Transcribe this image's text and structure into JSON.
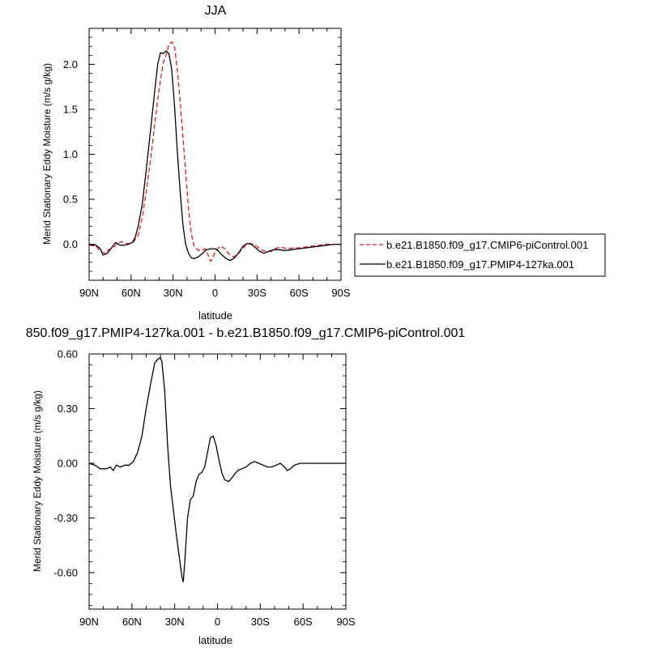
{
  "chart_data": [
    {
      "type": "line",
      "title": "JJA",
      "xlabel": "latitude",
      "ylabel": "Merid Stationary Eddy Moisture (m/s g/kg)",
      "xlim": [
        90,
        -90
      ],
      "ylim": [
        -0.4,
        2.4
      ],
      "x_ticks": [
        90,
        60,
        30,
        0,
        -30,
        -60,
        -90
      ],
      "x_tick_labels": [
        "90N",
        "60N",
        "30N",
        "0",
        "30S",
        "60S",
        "90S"
      ],
      "y_ticks": [
        0.0,
        0.5,
        1.0,
        1.5,
        2.0
      ],
      "y_tick_labels": [
        "0.0",
        "0.5",
        "1.0",
        "1.5",
        "2.0"
      ],
      "legend_position": "right",
      "series": [
        {
          "name": "b.e21.B1850.f09_g17.CMIP6-piControl.001",
          "color": "#e41a1c",
          "dash": "dashed",
          "points": [
            [
              90,
              -0.01
            ],
            [
              85,
              -0.02
            ],
            [
              82,
              -0.08
            ],
            [
              79,
              -0.1
            ],
            [
              76,
              -0.06
            ],
            [
              73,
              -0.04
            ],
            [
              70,
              0.0
            ],
            [
              67,
              0.03
            ],
            [
              64,
              0.01
            ],
            [
              61,
              0.01
            ],
            [
              58,
              0.03
            ],
            [
              55,
              0.1
            ],
            [
              52,
              0.3
            ],
            [
              49,
              0.6
            ],
            [
              46,
              0.95
            ],
            [
              43,
              1.35
            ],
            [
              40,
              1.72
            ],
            [
              37,
              2.02
            ],
            [
              35,
              2.1
            ],
            [
              33,
              2.22
            ],
            [
              31,
              2.25
            ],
            [
              29,
              2.2
            ],
            [
              27,
              1.95
            ],
            [
              25,
              1.6
            ],
            [
              23,
              1.2
            ],
            [
              21,
              0.8
            ],
            [
              19,
              0.4
            ],
            [
              17,
              0.12
            ],
            [
              15,
              -0.02
            ],
            [
              12,
              -0.07
            ],
            [
              10,
              -0.07
            ],
            [
              7,
              -0.05
            ],
            [
              5,
              -0.12
            ],
            [
              3,
              -0.19
            ],
            [
              1,
              -0.12
            ],
            [
              -1,
              -0.06
            ],
            [
              -4,
              -0.02
            ],
            [
              -7,
              -0.05
            ],
            [
              -10,
              -0.11
            ],
            [
              -13,
              -0.14
            ],
            [
              -16,
              -0.12
            ],
            [
              -19,
              -0.06
            ],
            [
              -22,
              -0.01
            ],
            [
              -25,
              0.01
            ],
            [
              -28,
              0.0
            ],
            [
              -31,
              -0.04
            ],
            [
              -34,
              -0.07
            ],
            [
              -37,
              -0.08
            ],
            [
              -40,
              -0.08
            ],
            [
              -43,
              -0.05
            ],
            [
              -46,
              -0.03
            ],
            [
              -49,
              -0.04
            ],
            [
              -52,
              -0.05
            ],
            [
              -56,
              -0.04
            ],
            [
              -60,
              -0.04
            ],
            [
              -65,
              -0.03
            ],
            [
              -70,
              -0.02
            ],
            [
              -75,
              -0.01
            ],
            [
              -80,
              0.0
            ],
            [
              -85,
              0.0
            ],
            [
              -90,
              0.0
            ]
          ]
        },
        {
          "name": "b.e21.B1850.f09_g17.PMIP4-127ka.001",
          "color": "#000000",
          "dash": "solid",
          "points": [
            [
              90,
              0.0
            ],
            [
              85,
              -0.01
            ],
            [
              82,
              -0.05
            ],
            [
              80,
              -0.12
            ],
            [
              77,
              -0.1
            ],
            [
              74,
              -0.04
            ],
            [
              71,
              0.02
            ],
            [
              68,
              -0.01
            ],
            [
              65,
              -0.01
            ],
            [
              62,
              0.0
            ],
            [
              59,
              0.02
            ],
            [
              57,
              0.08
            ],
            [
              55,
              0.2
            ],
            [
              52,
              0.45
            ],
            [
              49,
              0.85
            ],
            [
              46,
              1.28
            ],
            [
              43,
              1.72
            ],
            [
              41,
              2.0
            ],
            [
              39,
              2.13
            ],
            [
              37,
              2.12
            ],
            [
              35,
              2.15
            ],
            [
              33,
              2.12
            ],
            [
              31,
              1.95
            ],
            [
              29,
              1.55
            ],
            [
              27,
              1.05
            ],
            [
              25,
              0.6
            ],
            [
              23,
              0.22
            ],
            [
              21,
              0.0
            ],
            [
              19,
              -0.1
            ],
            [
              17,
              -0.15
            ],
            [
              15,
              -0.16
            ],
            [
              12,
              -0.14
            ],
            [
              9,
              -0.1
            ],
            [
              6,
              -0.06
            ],
            [
              3,
              -0.05
            ],
            [
              0,
              -0.05
            ],
            [
              -2,
              -0.07
            ],
            [
              -5,
              -0.12
            ],
            [
              -8,
              -0.16
            ],
            [
              -11,
              -0.18
            ],
            [
              -14,
              -0.15
            ],
            [
              -17,
              -0.09
            ],
            [
              -20,
              -0.02
            ],
            [
              -23,
              0.01
            ],
            [
              -26,
              0.0
            ],
            [
              -29,
              -0.04
            ],
            [
              -32,
              -0.08
            ],
            [
              -35,
              -0.1
            ],
            [
              -38,
              -0.08
            ],
            [
              -42,
              -0.06
            ],
            [
              -46,
              -0.06
            ],
            [
              -50,
              -0.07
            ],
            [
              -55,
              -0.06
            ],
            [
              -60,
              -0.05
            ],
            [
              -65,
              -0.04
            ],
            [
              -70,
              -0.03
            ],
            [
              -75,
              -0.02
            ],
            [
              -80,
              -0.01
            ],
            [
              -85,
              0.0
            ],
            [
              -90,
              0.0
            ]
          ]
        }
      ]
    },
    {
      "type": "line",
      "title": "850.f09_g17.PMIP4-127ka.001 - b.e21.B1850.f09_g17.CMIP6-piControl.001",
      "xlabel": "latitude",
      "ylabel": "Merid Stationary Eddy Moisture (m/s g/kg)",
      "xlim": [
        90,
        -90
      ],
      "ylim": [
        -0.8,
        0.6
      ],
      "x_ticks": [
        90,
        60,
        30,
        0,
        -30,
        -60,
        -90
      ],
      "x_tick_labels": [
        "90N",
        "60N",
        "30N",
        "0",
        "30S",
        "60S",
        "90S"
      ],
      "y_ticks": [
        0.6,
        0.3,
        0.0,
        -0.3,
        -0.6
      ],
      "y_tick_labels": [
        "0.60",
        "0.30",
        "0.00",
        "-0.30",
        "-0.60"
      ],
      "series": [
        {
          "color": "#000000",
          "dash": "solid",
          "points": [
            [
              90,
              0.0
            ],
            [
              86,
              -0.01
            ],
            [
              82,
              -0.03
            ],
            [
              78,
              -0.03
            ],
            [
              75,
              -0.02
            ],
            [
              73,
              -0.04
            ],
            [
              71,
              -0.01
            ],
            [
              68,
              -0.02
            ],
            [
              65,
              -0.01
            ],
            [
              62,
              -0.01
            ],
            [
              59,
              0.01
            ],
            [
              56,
              0.06
            ],
            [
              53,
              0.15
            ],
            [
              50,
              0.3
            ],
            [
              47,
              0.43
            ],
            [
              44,
              0.55
            ],
            [
              42,
              0.57
            ],
            [
              40,
              0.58
            ],
            [
              39,
              0.56
            ],
            [
              37,
              0.4
            ],
            [
              35,
              0.1
            ],
            [
              33,
              -0.12
            ],
            [
              31,
              -0.25
            ],
            [
              29,
              -0.38
            ],
            [
              27,
              -0.5
            ],
            [
              25,
              -0.62
            ],
            [
              24,
              -0.65
            ],
            [
              23,
              -0.55
            ],
            [
              21,
              -0.3
            ],
            [
              19,
              -0.2
            ],
            [
              17,
              -0.18
            ],
            [
              15,
              -0.1
            ],
            [
              13,
              -0.06
            ],
            [
              11,
              -0.05
            ],
            [
              9,
              -0.02
            ],
            [
              7,
              0.06
            ],
            [
              5,
              0.14
            ],
            [
              3,
              0.15
            ],
            [
              1,
              0.1
            ],
            [
              -1,
              0.02
            ],
            [
              -3,
              -0.05
            ],
            [
              -5,
              -0.09
            ],
            [
              -8,
              -0.1
            ],
            [
              -11,
              -0.07
            ],
            [
              -14,
              -0.04
            ],
            [
              -17,
              -0.03
            ],
            [
              -20,
              -0.02
            ],
            [
              -23,
              0.0
            ],
            [
              -26,
              0.01
            ],
            [
              -29,
              0.0
            ],
            [
              -32,
              -0.01
            ],
            [
              -35,
              -0.02
            ],
            [
              -38,
              -0.02
            ],
            [
              -41,
              -0.01
            ],
            [
              -44,
              0.0
            ],
            [
              -47,
              -0.02
            ],
            [
              -49,
              -0.04
            ],
            [
              -51,
              -0.03
            ],
            [
              -54,
              -0.01
            ],
            [
              -58,
              0.0
            ],
            [
              -62,
              0.0
            ],
            [
              -66,
              0.0
            ],
            [
              -70,
              0.0
            ],
            [
              -75,
              0.0
            ],
            [
              -80,
              0.0
            ],
            [
              -85,
              0.0
            ],
            [
              -90,
              0.0
            ]
          ]
        }
      ]
    }
  ]
}
